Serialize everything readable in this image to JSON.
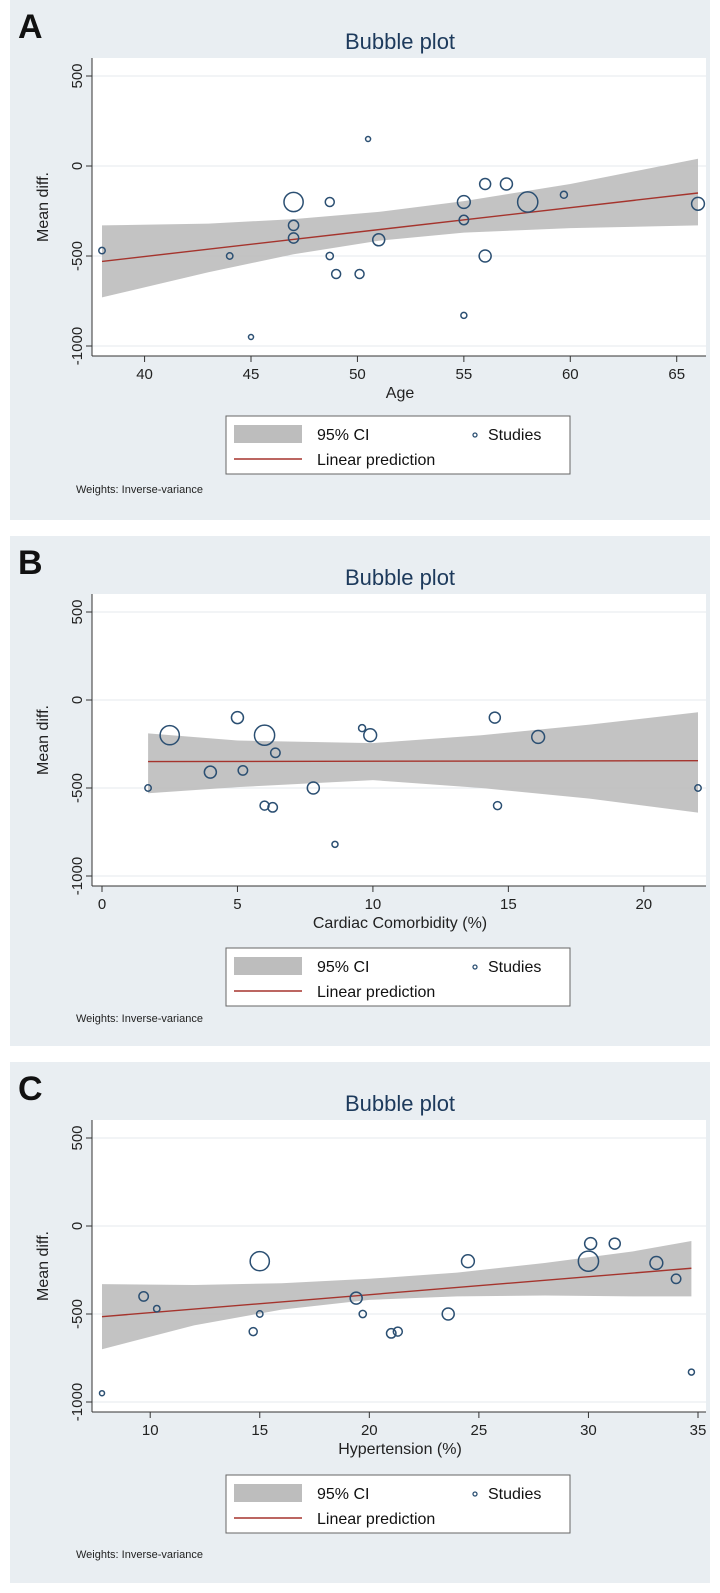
{
  "chart_data": [
    {
      "type": "scatter",
      "panel_letter": "A",
      "title": "Bubble plot",
      "xlabel": "Age",
      "ylabel": "Mean diff.",
      "xlim": [
        38,
        66
      ],
      "ylim": [
        -1000,
        500
      ],
      "xticks": [
        40,
        45,
        50,
        55,
        60,
        65
      ],
      "yticks": [
        500,
        0,
        -500,
        -1000
      ],
      "grid": true,
      "legend": {
        "ci": "95% CI",
        "studies": "Studies",
        "line": "Linear prediction"
      },
      "note": "Weights: Inverse-variance",
      "fit": {
        "x": [
          38,
          66
        ],
        "y": [
          -530,
          -150
        ]
      },
      "ci_band": {
        "x": [
          38,
          43,
          47,
          51,
          55,
          60,
          66
        ],
        "upper": [
          -330,
          -320,
          -295,
          -255,
          -195,
          -100,
          40
        ],
        "lower": [
          -730,
          -590,
          -490,
          -415,
          -370,
          -345,
          -330
        ]
      },
      "points": [
        {
          "x": 38,
          "y": -470,
          "w": 1
        },
        {
          "x": 44,
          "y": -500,
          "w": 1
        },
        {
          "x": 45,
          "y": -950,
          "w": 0.6
        },
        {
          "x": 47,
          "y": -200,
          "w": 9
        },
        {
          "x": 47,
          "y": -330,
          "w": 2.5
        },
        {
          "x": 47,
          "y": -400,
          "w": 2.5
        },
        {
          "x": 48.7,
          "y": -200,
          "w": 2
        },
        {
          "x": 48.7,
          "y": -500,
          "w": 1.3
        },
        {
          "x": 49,
          "y": -600,
          "w": 2
        },
        {
          "x": 50.1,
          "y": -600,
          "w": 2
        },
        {
          "x": 50.5,
          "y": 150,
          "w": 0.6
        },
        {
          "x": 51,
          "y": -410,
          "w": 3.5
        },
        {
          "x": 55,
          "y": -200,
          "w": 4
        },
        {
          "x": 55,
          "y": -300,
          "w": 2.2
        },
        {
          "x": 55,
          "y": -830,
          "w": 0.9
        },
        {
          "x": 56,
          "y": -100,
          "w": 3
        },
        {
          "x": 56,
          "y": -500,
          "w": 3.5
        },
        {
          "x": 57,
          "y": -100,
          "w": 3.5
        },
        {
          "x": 58,
          "y": -200,
          "w": 10
        },
        {
          "x": 59.7,
          "y": -160,
          "w": 1.2
        },
        {
          "x": 66,
          "y": -210,
          "w": 4
        }
      ]
    },
    {
      "type": "scatter",
      "panel_letter": "B",
      "title": "Bubble plot",
      "xlabel": "Cardiac Comorbidity (%)",
      "ylabel": "Mean diff.",
      "xlim": [
        0,
        22
      ],
      "ylim": [
        -1000,
        500
      ],
      "xticks": [
        0,
        5,
        10,
        15,
        20
      ],
      "yticks": [
        500,
        0,
        -500,
        -1000
      ],
      "grid": true,
      "legend": {
        "ci": "95% CI",
        "studies": "Studies",
        "line": "Linear prediction"
      },
      "note": "Weights: Inverse-variance",
      "fit": {
        "x": [
          1.7,
          22
        ],
        "y": [
          -350,
          -345
        ]
      },
      "ci_band": {
        "x": [
          1.7,
          5,
          10,
          14,
          18,
          22
        ],
        "upper": [
          -190,
          -230,
          -245,
          -200,
          -140,
          -70
        ],
        "lower": [
          -530,
          -495,
          -455,
          -500,
          -560,
          -640
        ]
      },
      "points": [
        {
          "x": 1.7,
          "y": -500,
          "w": 1
        },
        {
          "x": 2.5,
          "y": -200,
          "w": 9
        },
        {
          "x": 4,
          "y": -410,
          "w": 3.5
        },
        {
          "x": 5,
          "y": -100,
          "w": 3.5
        },
        {
          "x": 5.2,
          "y": -400,
          "w": 2.2
        },
        {
          "x": 6,
          "y": -200,
          "w": 10
        },
        {
          "x": 6,
          "y": -600,
          "w": 2
        },
        {
          "x": 6.3,
          "y": -610,
          "w": 2.2
        },
        {
          "x": 6.4,
          "y": -300,
          "w": 2.2
        },
        {
          "x": 7.8,
          "y": -500,
          "w": 3.5
        },
        {
          "x": 8.6,
          "y": -820,
          "w": 0.9
        },
        {
          "x": 9.6,
          "y": -160,
          "w": 1.2
        },
        {
          "x": 9.9,
          "y": -200,
          "w": 4
        },
        {
          "x": 14.5,
          "y": -100,
          "w": 3
        },
        {
          "x": 14.6,
          "y": -600,
          "w": 1.6
        },
        {
          "x": 16.1,
          "y": -210,
          "w": 4
        },
        {
          "x": 22,
          "y": -500,
          "w": 1
        }
      ]
    },
    {
      "type": "scatter",
      "panel_letter": "C",
      "title": "Bubble plot",
      "xlabel": "Hypertension (%)",
      "ylabel": "Mean diff.",
      "xlim": [
        7.8,
        35
      ],
      "ylim": [
        -1000,
        500
      ],
      "xticks": [
        10,
        15,
        20,
        25,
        30,
        35
      ],
      "yticks": [
        500,
        0,
        -500,
        -1000
      ],
      "grid": true,
      "legend": {
        "ci": "95% CI",
        "studies": "Studies",
        "line": "Linear prediction"
      },
      "note": "Weights: Inverse-variance",
      "fit": {
        "x": [
          7.8,
          34.7
        ],
        "y": [
          -515,
          -240
        ]
      },
      "ci_band": {
        "x": [
          7.8,
          12,
          16,
          20,
          24,
          28,
          32,
          34.7
        ],
        "upper": [
          -330,
          -335,
          -325,
          -300,
          -265,
          -210,
          -145,
          -85
        ],
        "lower": [
          -700,
          -565,
          -475,
          -420,
          -400,
          -395,
          -400,
          -400
        ]
      },
      "points": [
        {
          "x": 7.8,
          "y": -950,
          "w": 0.6
        },
        {
          "x": 9.7,
          "y": -400,
          "w": 2.2
        },
        {
          "x": 10.3,
          "y": -470,
          "w": 1
        },
        {
          "x": 14.7,
          "y": -600,
          "w": 1.6
        },
        {
          "x": 15,
          "y": -200,
          "w": 9
        },
        {
          "x": 15,
          "y": -500,
          "w": 1
        },
        {
          "x": 19.4,
          "y": -410,
          "w": 3.5
        },
        {
          "x": 19.7,
          "y": -500,
          "w": 1.3
        },
        {
          "x": 21,
          "y": -610,
          "w": 2.2
        },
        {
          "x": 21.3,
          "y": -600,
          "w": 2
        },
        {
          "x": 23.6,
          "y": -500,
          "w": 3.5
        },
        {
          "x": 24.5,
          "y": -200,
          "w": 4
        },
        {
          "x": 30,
          "y": -200,
          "w": 10
        },
        {
          "x": 30.1,
          "y": -100,
          "w": 3.5
        },
        {
          "x": 31.2,
          "y": -100,
          "w": 3
        },
        {
          "x": 33.1,
          "y": -210,
          "w": 4
        },
        {
          "x": 34,
          "y": -300,
          "w": 2.2
        },
        {
          "x": 34.7,
          "y": -830,
          "w": 0.9
        }
      ]
    }
  ]
}
